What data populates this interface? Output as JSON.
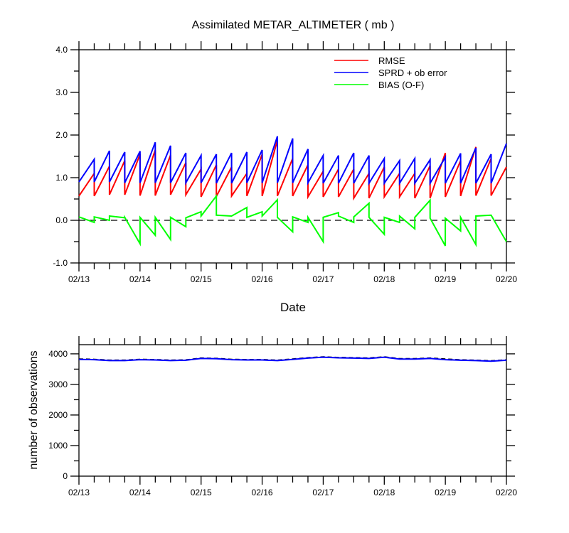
{
  "chart_data": [
    {
      "type": "line",
      "title": "Assimilated METAR_ALTIMETER ( mb )",
      "xlabel": "Date",
      "ylabel": "",
      "xlim": [
        0,
        7
      ],
      "ylim": [
        -1.0,
        4.0
      ],
      "categories": [
        "02/13",
        "02/14",
        "02/15",
        "02/16",
        "02/17",
        "02/18",
        "02/19",
        "02/20"
      ],
      "yticks": [
        "-1.0",
        "0.0",
        "1.0",
        "2.0",
        "3.0",
        "4.0"
      ],
      "grid": false,
      "legend": "top-right",
      "reference_line": 0.0,
      "series": [
        {
          "name": "RMSE",
          "color": "#ff0000",
          "segments": [
            [
              0,
              0.57
            ],
            [
              0.25,
              1.1
            ],
            [
              0.25,
              0.57
            ],
            [
              0.5,
              1.27
            ],
            [
              0.5,
              0.6
            ],
            [
              0.75,
              1.4
            ],
            [
              0.75,
              0.6
            ],
            [
              1.0,
              1.55
            ],
            [
              1.0,
              0.58
            ],
            [
              1.25,
              1.65
            ],
            [
              1.25,
              0.58
            ],
            [
              1.5,
              1.53
            ],
            [
              1.5,
              0.6
            ],
            [
              1.75,
              1.35
            ],
            [
              1.75,
              0.6
            ],
            [
              2.0,
              1.2
            ],
            [
              2.0,
              0.55
            ],
            [
              2.25,
              1.3
            ],
            [
              2.25,
              0.56
            ],
            [
              2.5,
              1.25
            ],
            [
              2.5,
              0.57
            ],
            [
              2.75,
              1.1
            ],
            [
              2.75,
              0.57
            ],
            [
              3.0,
              1.55
            ],
            [
              3.0,
              0.57
            ],
            [
              3.25,
              1.88
            ],
            [
              3.25,
              0.57
            ],
            [
              3.5,
              1.45
            ],
            [
              3.5,
              0.57
            ],
            [
              3.75,
              1.3
            ],
            [
              3.75,
              0.55
            ],
            [
              4.0,
              1.15
            ],
            [
              4.0,
              0.55
            ],
            [
              4.25,
              1.2
            ],
            [
              4.25,
              0.55
            ],
            [
              4.5,
              1.2
            ],
            [
              4.5,
              0.52
            ],
            [
              4.75,
              1.1
            ],
            [
              4.75,
              0.52
            ],
            [
              5.0,
              1.25
            ],
            [
              5.0,
              0.55
            ],
            [
              5.25,
              1.1
            ],
            [
              5.25,
              0.55
            ],
            [
              5.5,
              1.1
            ],
            [
              5.5,
              0.52
            ],
            [
              5.75,
              1.28
            ],
            [
              5.75,
              0.52
            ],
            [
              6.0,
              1.58
            ],
            [
              6.0,
              0.55
            ],
            [
              6.25,
              1.4
            ],
            [
              6.25,
              0.57
            ],
            [
              6.5,
              1.72
            ],
            [
              6.5,
              0.58
            ],
            [
              6.75,
              1.45
            ],
            [
              6.75,
              0.58
            ],
            [
              7.0,
              1.25
            ]
          ]
        },
        {
          "name": "SPRD + ob error",
          "color": "#0000ff",
          "segments": [
            [
              0,
              0.9
            ],
            [
              0.25,
              1.43
            ],
            [
              0.25,
              0.9
            ],
            [
              0.5,
              1.63
            ],
            [
              0.5,
              0.9
            ],
            [
              0.75,
              1.6
            ],
            [
              0.75,
              0.88
            ],
            [
              1.0,
              1.62
            ],
            [
              1.0,
              0.88
            ],
            [
              1.25,
              1.83
            ],
            [
              1.25,
              0.88
            ],
            [
              1.5,
              1.75
            ],
            [
              1.5,
              0.88
            ],
            [
              1.75,
              1.58
            ],
            [
              1.75,
              0.88
            ],
            [
              2.0,
              1.52
            ],
            [
              2.0,
              0.88
            ],
            [
              2.25,
              1.55
            ],
            [
              2.25,
              0.87
            ],
            [
              2.5,
              1.58
            ],
            [
              2.5,
              0.87
            ],
            [
              2.75,
              1.6
            ],
            [
              2.75,
              0.88
            ],
            [
              3.0,
              1.65
            ],
            [
              3.0,
              0.88
            ],
            [
              3.25,
              1.97
            ],
            [
              3.25,
              0.88
            ],
            [
              3.5,
              1.92
            ],
            [
              3.5,
              0.88
            ],
            [
              3.75,
              1.67
            ],
            [
              3.75,
              0.88
            ],
            [
              4.0,
              1.52
            ],
            [
              4.0,
              0.87
            ],
            [
              4.25,
              1.52
            ],
            [
              4.25,
              0.87
            ],
            [
              4.5,
              1.58
            ],
            [
              4.5,
              0.87
            ],
            [
              4.75,
              1.52
            ],
            [
              4.75,
              0.87
            ],
            [
              5.0,
              1.45
            ],
            [
              5.0,
              0.87
            ],
            [
              5.25,
              1.4
            ],
            [
              5.25,
              0.87
            ],
            [
              5.5,
              1.45
            ],
            [
              5.5,
              0.87
            ],
            [
              5.75,
              1.42
            ],
            [
              5.75,
              0.87
            ],
            [
              6.0,
              1.48
            ],
            [
              6.0,
              0.87
            ],
            [
              6.25,
              1.57
            ],
            [
              6.25,
              0.87
            ],
            [
              6.5,
              1.7
            ],
            [
              6.5,
              0.87
            ],
            [
              6.75,
              1.55
            ],
            [
              6.75,
              0.87
            ],
            [
              7.0,
              1.8
            ]
          ]
        },
        {
          "name": "BIAS (O-F)",
          "color": "#00ff00",
          "segments": [
            [
              0,
              0.08
            ],
            [
              0.25,
              -0.05
            ],
            [
              0.25,
              0.08
            ],
            [
              0.5,
              0.0
            ],
            [
              0.5,
              0.1
            ],
            [
              0.75,
              0.06
            ],
            [
              0.75,
              0.07
            ],
            [
              1.0,
              -0.55
            ],
            [
              1.0,
              0.07
            ],
            [
              1.25,
              -0.35
            ],
            [
              1.25,
              0.07
            ],
            [
              1.5,
              -0.45
            ],
            [
              1.5,
              0.07
            ],
            [
              1.75,
              -0.15
            ],
            [
              1.75,
              0.06
            ],
            [
              2.0,
              0.2
            ],
            [
              2.0,
              0.1
            ],
            [
              2.25,
              0.57
            ],
            [
              2.25,
              0.12
            ],
            [
              2.5,
              0.1
            ],
            [
              2.5,
              0.1
            ],
            [
              2.75,
              0.3
            ],
            [
              2.75,
              0.07
            ],
            [
              3.0,
              0.2
            ],
            [
              3.0,
              0.1
            ],
            [
              3.25,
              0.48
            ],
            [
              3.25,
              0.07
            ],
            [
              3.5,
              -0.27
            ],
            [
              3.5,
              0.08
            ],
            [
              3.75,
              -0.05
            ],
            [
              3.75,
              0.07
            ],
            [
              4.0,
              -0.5
            ],
            [
              4.0,
              0.07
            ],
            [
              4.25,
              0.18
            ],
            [
              4.25,
              0.1
            ],
            [
              4.5,
              -0.05
            ],
            [
              4.5,
              0.08
            ],
            [
              4.75,
              0.4
            ],
            [
              4.75,
              0.07
            ],
            [
              5.0,
              -0.33
            ],
            [
              5.0,
              0.07
            ],
            [
              5.25,
              -0.05
            ],
            [
              5.25,
              0.1
            ],
            [
              5.5,
              -0.2
            ],
            [
              5.5,
              0.07
            ],
            [
              5.75,
              0.47
            ],
            [
              5.75,
              0.05
            ],
            [
              6.0,
              -0.6
            ],
            [
              6.0,
              0.05
            ],
            [
              6.25,
              -0.25
            ],
            [
              6.25,
              0.07
            ],
            [
              6.5,
              -0.57
            ],
            [
              6.5,
              0.1
            ],
            [
              6.75,
              0.12
            ],
            [
              6.75,
              0.12
            ],
            [
              7.0,
              -0.5
            ]
          ]
        }
      ]
    },
    {
      "type": "line",
      "title": "",
      "xlabel": "",
      "ylabel": "number of observations",
      "xlim": [
        0,
        7
      ],
      "ylim": [
        0,
        4300
      ],
      "categories": [
        "02/13",
        "02/14",
        "02/15",
        "02/16",
        "02/17",
        "02/18",
        "02/19",
        "02/20"
      ],
      "yticks": [
        "0",
        "1000",
        "2000",
        "3000",
        "4000"
      ],
      "grid": false,
      "series": [
        {
          "color": "#000000",
          "dashed": true,
          "points": [
            [
              0,
              3830
            ],
            [
              0.25,
              3820
            ],
            [
              0.5,
              3790
            ],
            [
              0.75,
              3790
            ],
            [
              1.0,
              3820
            ],
            [
              1.25,
              3810
            ],
            [
              1.5,
              3790
            ],
            [
              1.75,
              3800
            ],
            [
              2.0,
              3860
            ],
            [
              2.25,
              3850
            ],
            [
              2.5,
              3820
            ],
            [
              2.75,
              3810
            ],
            [
              3.0,
              3810
            ],
            [
              3.25,
              3790
            ],
            [
              3.5,
              3830
            ],
            [
              3.75,
              3870
            ],
            [
              4.0,
              3900
            ],
            [
              4.25,
              3880
            ],
            [
              4.5,
              3870
            ],
            [
              4.75,
              3860
            ],
            [
              5.0,
              3900
            ],
            [
              5.25,
              3840
            ],
            [
              5.5,
              3840
            ],
            [
              5.75,
              3860
            ],
            [
              6.0,
              3830
            ],
            [
              6.25,
              3800
            ],
            [
              6.5,
              3790
            ],
            [
              6.75,
              3770
            ],
            [
              7.0,
              3800
            ]
          ]
        },
        {
          "color": "#0000ff",
          "dashed": false,
          "points": [
            [
              0,
              3820
            ],
            [
              0.25,
              3810
            ],
            [
              0.5,
              3780
            ],
            [
              0.75,
              3780
            ],
            [
              1.0,
              3810
            ],
            [
              1.25,
              3800
            ],
            [
              1.5,
              3780
            ],
            [
              1.75,
              3790
            ],
            [
              2.0,
              3850
            ],
            [
              2.25,
              3840
            ],
            [
              2.5,
              3810
            ],
            [
              2.75,
              3800
            ],
            [
              3.0,
              3800
            ],
            [
              3.25,
              3780
            ],
            [
              3.5,
              3820
            ],
            [
              3.75,
              3860
            ],
            [
              4.0,
              3890
            ],
            [
              4.25,
              3870
            ],
            [
              4.5,
              3860
            ],
            [
              4.75,
              3850
            ],
            [
              5.0,
              3890
            ],
            [
              5.25,
              3830
            ],
            [
              5.5,
              3830
            ],
            [
              5.75,
              3850
            ],
            [
              6.0,
              3810
            ],
            [
              6.25,
              3790
            ],
            [
              6.5,
              3780
            ],
            [
              6.75,
              3760
            ],
            [
              7.0,
              3790
            ]
          ]
        }
      ]
    }
  ]
}
